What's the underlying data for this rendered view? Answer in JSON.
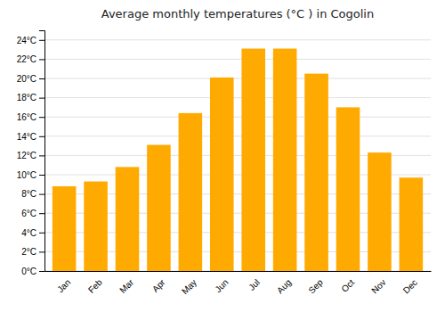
{
  "chart_data": {
    "type": "bar",
    "title": "Average monthly temperatures (°C ) in Cogolin",
    "categories": [
      "Jan",
      "Feb",
      "Mar",
      "Apr",
      "May",
      "Jun",
      "Jul",
      "Aug",
      "Sep",
      "Oct",
      "Nov",
      "Dec"
    ],
    "values": [
      8.8,
      9.3,
      10.8,
      13.1,
      16.4,
      20.1,
      23.1,
      23.1,
      20.5,
      17.0,
      12.3,
      9.7
    ],
    "color": "#FFAA00",
    "ylim": [
      0,
      25
    ],
    "yticks": [
      {
        "value": 0,
        "label": "0°C"
      },
      {
        "value": 2,
        "label": "2°C"
      },
      {
        "value": 4,
        "label": "4°C"
      },
      {
        "value": 6,
        "label": "6°C"
      },
      {
        "value": 8,
        "label": "8°C"
      },
      {
        "value": 10,
        "label": "10°C"
      },
      {
        "value": 12,
        "label": "12°C"
      },
      {
        "value": 14,
        "label": "14°C"
      },
      {
        "value": 16,
        "label": "16°C"
      },
      {
        "value": 18,
        "label": "18°C"
      },
      {
        "value": 20,
        "label": "20°C"
      },
      {
        "value": 22,
        "label": "22°C"
      },
      {
        "value": 24,
        "label": "24°C"
      }
    ],
    "grid": true
  }
}
